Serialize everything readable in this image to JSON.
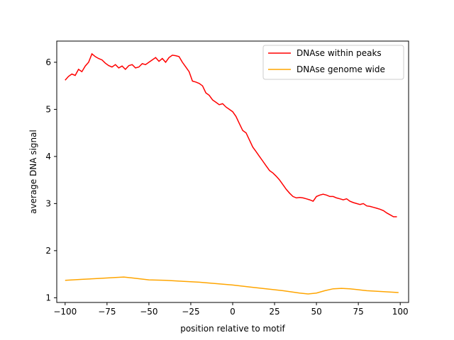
{
  "chart_data": {
    "type": "line",
    "title": "",
    "xlabel": "position relative to motif",
    "ylabel": "average DNA signal",
    "xlim": [
      -105,
      105
    ],
    "ylim": [
      0.9,
      6.45
    ],
    "xticks": [
      -100,
      -75,
      -50,
      -25,
      0,
      25,
      50,
      75,
      100
    ],
    "yticks": [
      1,
      2,
      3,
      4,
      5,
      6
    ],
    "xtick_labels": [
      "−100",
      "−75",
      "−50",
      "−25",
      "0",
      "25",
      "50",
      "75",
      "100"
    ],
    "ytick_labels": [
      "1",
      "2",
      "3",
      "4",
      "5",
      "6"
    ],
    "grid": false,
    "legend": "top-right",
    "series": [
      {
        "name": "DNAse within peaks",
        "color": "#ff0000",
        "x": [
          -100,
          -98,
          -96,
          -94,
          -92,
          -90,
          -88,
          -86,
          -84,
          -82,
          -80,
          -78,
          -76,
          -74,
          -72,
          -70,
          -68,
          -66,
          -64,
          -62,
          -60,
          -58,
          -56,
          -54,
          -52,
          -50,
          -48,
          -46,
          -44,
          -42,
          -40,
          -38,
          -36,
          -34,
          -32,
          -30,
          -28,
          -26,
          -24,
          -22,
          -20,
          -18,
          -16,
          -14,
          -12,
          -10,
          -8,
          -6,
          -4,
          -2,
          0,
          2,
          4,
          6,
          8,
          10,
          12,
          14,
          16,
          18,
          20,
          22,
          24,
          26,
          28,
          30,
          32,
          34,
          36,
          38,
          40,
          42,
          44,
          46,
          48,
          50,
          52,
          54,
          56,
          58,
          60,
          62,
          64,
          66,
          68,
          70,
          72,
          74,
          76,
          78,
          80,
          82,
          84,
          86,
          88,
          90,
          92,
          94,
          96,
          98
        ],
        "y": [
          5.62,
          5.7,
          5.75,
          5.72,
          5.85,
          5.8,
          5.92,
          6.0,
          6.18,
          6.12,
          6.08,
          6.05,
          5.98,
          5.93,
          5.9,
          5.95,
          5.88,
          5.92,
          5.85,
          5.93,
          5.95,
          5.88,
          5.9,
          5.97,
          5.95,
          6.0,
          6.05,
          6.1,
          6.02,
          6.08,
          6.0,
          6.1,
          6.15,
          6.14,
          6.12,
          6.0,
          5.9,
          5.8,
          5.6,
          5.58,
          5.55,
          5.5,
          5.35,
          5.3,
          5.2,
          5.15,
          5.1,
          5.12,
          5.05,
          5.0,
          4.95,
          4.85,
          4.7,
          4.55,
          4.5,
          4.35,
          4.2,
          4.1,
          4.0,
          3.9,
          3.8,
          3.7,
          3.65,
          3.58,
          3.5,
          3.4,
          3.3,
          3.22,
          3.15,
          3.12,
          3.13,
          3.12,
          3.1,
          3.08,
          3.05,
          3.15,
          3.18,
          3.2,
          3.18,
          3.15,
          3.15,
          3.12,
          3.1,
          3.08,
          3.1,
          3.05,
          3.02,
          3.0,
          2.98,
          3.0,
          2.95,
          2.94,
          2.92,
          2.9,
          2.88,
          2.85,
          2.8,
          2.76,
          2.72,
          2.72
        ]
      },
      {
        "name": "DNAse genome wide",
        "color": "#ffa500",
        "x": [
          -100,
          -90,
          -80,
          -70,
          -65,
          -60,
          -50,
          -40,
          -30,
          -20,
          -10,
          0,
          10,
          20,
          30,
          40,
          45,
          50,
          55,
          60,
          65,
          70,
          75,
          80,
          90,
          99
        ],
        "y": [
          1.37,
          1.39,
          1.41,
          1.43,
          1.44,
          1.42,
          1.38,
          1.37,
          1.35,
          1.33,
          1.3,
          1.27,
          1.23,
          1.19,
          1.15,
          1.1,
          1.08,
          1.1,
          1.15,
          1.19,
          1.2,
          1.19,
          1.17,
          1.15,
          1.13,
          1.11
        ]
      }
    ]
  }
}
